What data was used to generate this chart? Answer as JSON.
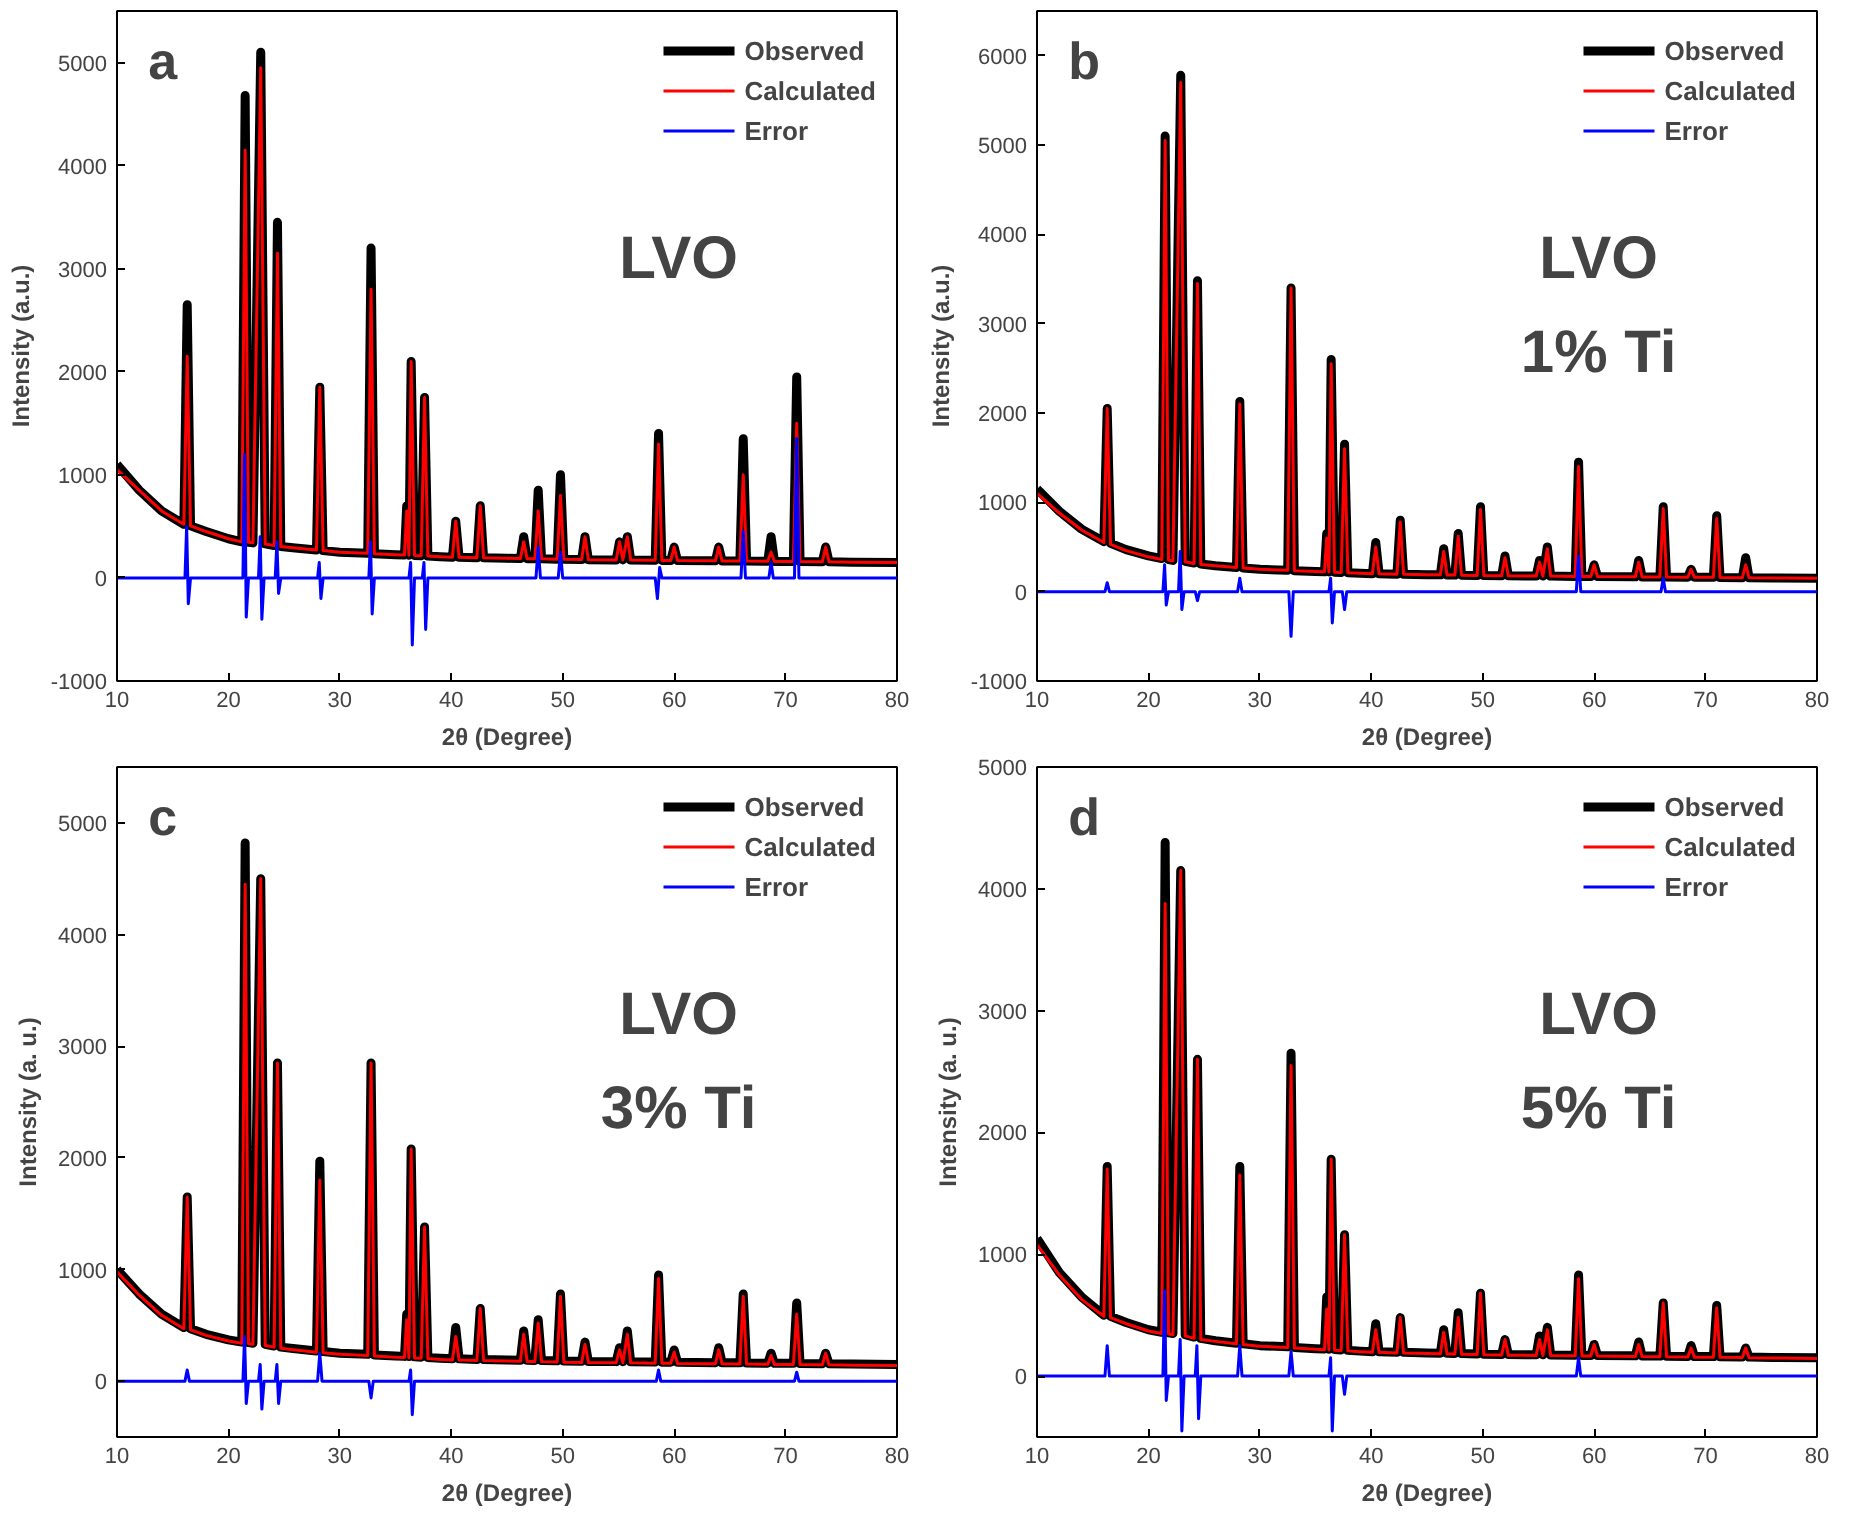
{
  "chart_data": [
    {
      "type": "line",
      "xlabel": "2θ (Degree)",
      "ylabel": "Intensity (a.u.)",
      "annotations": [
        "a",
        "LVO"
      ],
      "legend": "top right",
      "grid": false,
      "xlim": [
        10,
        80
      ],
      "xticks": [
        10,
        20,
        30,
        40,
        50,
        60,
        70,
        80
      ],
      "ylim": [
        -1000,
        5500
      ],
      "yticks": [
        -1000,
        0,
        1000,
        2000,
        3000,
        4000,
        5000
      ],
      "x": [
        10,
        12,
        14,
        16,
        16.3,
        16.6,
        18,
        20,
        21.2,
        21.5,
        21.8,
        22.2,
        22.9,
        23.3,
        24.1,
        24.4,
        24.7,
        26,
        27.9,
        28.2,
        28.5,
        30,
        32.5,
        32.8,
        33.1,
        35,
        35.8,
        36.0,
        36.2,
        36.4,
        36.7,
        37.3,
        37.6,
        37.9,
        39,
        40.1,
        40.4,
        40.7,
        42.3,
        42.6,
        42.9,
        45,
        46.2,
        46.5,
        46.8,
        47.5,
        47.8,
        48.1,
        49.5,
        49.8,
        50.1,
        51.7,
        52.0,
        52.3,
        54.8,
        55.1,
        55.4,
        55.8,
        56.1,
        58.3,
        58.6,
        58.9,
        59.7,
        60.0,
        60.3,
        63.7,
        64.0,
        64.3,
        65.9,
        66.2,
        66.5,
        68.4,
        68.7,
        69.0,
        70.7,
        71.0,
        71.3,
        73.3,
        73.6,
        73.9,
        76,
        80
      ],
      "series": [
        {
          "name": "Observed",
          "color": "#000000",
          "values": [
            1100,
            850,
            650,
            520,
            2650,
            505,
            450,
            380,
            350,
            4680,
            345,
            340,
            5100,
            330,
            315,
            3450,
            305,
            290,
            270,
            1850,
            265,
            250,
            240,
            3200,
            235,
            225,
            222,
            700,
            220,
            2100,
            218,
            215,
            1750,
            212,
            205,
            200,
            550,
            200,
            195,
            700,
            195,
            190,
            188,
            400,
            187,
            186,
            850,
            185,
            182,
            1000,
            180,
            178,
            400,
            177,
            175,
            350,
            175,
            400,
            174,
            171,
            1400,
            170,
            170,
            300,
            169,
            166,
            300,
            165,
            164,
            1350,
            163,
            161,
            400,
            160,
            160,
            1950,
            159,
            157,
            300,
            156,
            153,
            150
          ]
        },
        {
          "name": "Calculated",
          "color": "#ff0000",
          "values": [
            1050,
            850,
            650,
            520,
            2150,
            505,
            450,
            380,
            350,
            4150,
            345,
            340,
            4950,
            330,
            315,
            3150,
            305,
            290,
            270,
            1850,
            265,
            250,
            240,
            2800,
            235,
            225,
            222,
            650,
            220,
            2100,
            218,
            215,
            1750,
            212,
            205,
            200,
            550,
            200,
            195,
            700,
            195,
            190,
            188,
            350,
            187,
            186,
            650,
            185,
            182,
            800,
            180,
            178,
            400,
            177,
            175,
            350,
            175,
            400,
            174,
            171,
            1300,
            170,
            170,
            300,
            169,
            166,
            300,
            165,
            164,
            1000,
            163,
            161,
            250,
            160,
            160,
            1500,
            159,
            157,
            300,
            156,
            153,
            150
          ]
        },
        {
          "name": "Error",
          "color": "#0000ff",
          "x": [
            10,
            16.1,
            16.25,
            16.4,
            16.6,
            21.3,
            21.45,
            21.6,
            21.8,
            22.7,
            22.85,
            23.0,
            23.2,
            24.2,
            24.35,
            24.5,
            24.7,
            28.0,
            28.15,
            28.3,
            28.5,
            32.6,
            32.75,
            32.9,
            33.1,
            36.2,
            36.35,
            36.5,
            36.7,
            37.4,
            37.55,
            37.7,
            37.9,
            47.6,
            47.8,
            48.0,
            49.6,
            49.8,
            50.0,
            58.3,
            58.5,
            58.7,
            58.9,
            66.0,
            66.2,
            66.4,
            68.5,
            68.7,
            68.9,
            70.8,
            71.0,
            71.2,
            80
          ],
          "values": [
            0,
            0,
            500,
            -250,
            0,
            0,
            1200,
            -380,
            0,
            0,
            400,
            -400,
            0,
            0,
            350,
            -150,
            0,
            0,
            150,
            -200,
            0,
            0,
            350,
            -350,
            0,
            0,
            150,
            -650,
            0,
            0,
            150,
            -500,
            0,
            0,
            300,
            0,
            0,
            250,
            0,
            0,
            -200,
            100,
            0,
            0,
            450,
            0,
            0,
            150,
            0,
            0,
            1350,
            0,
            0
          ]
        }
      ]
    },
    {
      "type": "line",
      "xlabel": "2θ (Degree)",
      "ylabel": "Intensity (a.u.)",
      "annotations": [
        "b",
        "LVO",
        "1% Ti"
      ],
      "legend": "top right",
      "grid": false,
      "xlim": [
        10,
        80
      ],
      "xticks": [
        10,
        20,
        30,
        40,
        50,
        60,
        70,
        80
      ],
      "ylim": [
        -1000,
        6500
      ],
      "yticks": [
        -1000,
        0,
        1000,
        2000,
        3000,
        4000,
        5000,
        6000
      ],
      "x": [
        10,
        12,
        14,
        16,
        16.3,
        16.6,
        18,
        20,
        21.2,
        21.5,
        21.8,
        22.2,
        22.9,
        23.3,
        24.1,
        24.4,
        24.7,
        26,
        27.9,
        28.2,
        28.5,
        30,
        32.5,
        32.8,
        33.1,
        35,
        35.8,
        36.0,
        36.2,
        36.4,
        36.7,
        37.3,
        37.6,
        37.9,
        39,
        40.1,
        40.4,
        40.7,
        42.3,
        42.6,
        42.9,
        45,
        46.2,
        46.5,
        46.8,
        47.5,
        47.8,
        48.1,
        49.5,
        49.8,
        50.1,
        51.7,
        52.0,
        52.3,
        54.8,
        55.1,
        55.4,
        55.8,
        56.1,
        58.3,
        58.6,
        58.9,
        59.7,
        60.0,
        60.3,
        63.7,
        64.0,
        64.3,
        65.9,
        66.2,
        66.5,
        68.4,
        68.7,
        69.0,
        70.7,
        71.0,
        71.3,
        73.3,
        73.6,
        73.9,
        76,
        80
      ],
      "series": [
        {
          "name": "Observed",
          "color": "#000000",
          "values": [
            1150,
            900,
            700,
            560,
            2050,
            540,
            470,
            400,
            370,
            5100,
            360,
            350,
            5780,
            340,
            320,
            3480,
            310,
            290,
            270,
            2130,
            265,
            250,
            240,
            3400,
            235,
            225,
            222,
            650,
            220,
            2600,
            218,
            215,
            1650,
            212,
            205,
            200,
            550,
            200,
            195,
            800,
            195,
            190,
            188,
            480,
            187,
            186,
            650,
            185,
            182,
            950,
            180,
            178,
            400,
            177,
            175,
            350,
            175,
            500,
            174,
            171,
            1450,
            170,
            170,
            300,
            169,
            166,
            350,
            165,
            164,
            950,
            163,
            161,
            250,
            160,
            160,
            850,
            159,
            157,
            380,
            156,
            153,
            150
          ]
        },
        {
          "name": "Calculated",
          "color": "#ff0000",
          "values": [
            1100,
            880,
            690,
            550,
            2050,
            530,
            460,
            390,
            360,
            5050,
            355,
            345,
            5700,
            335,
            315,
            3450,
            305,
            290,
            270,
            2100,
            265,
            250,
            240,
            3400,
            235,
            225,
            222,
            600,
            220,
            2550,
            218,
            215,
            1600,
            212,
            205,
            200,
            500,
            200,
            195,
            780,
            195,
            190,
            188,
            450,
            187,
            186,
            620,
            185,
            182,
            920,
            180,
            178,
            380,
            177,
            175,
            330,
            175,
            480,
            174,
            171,
            1400,
            170,
            170,
            300,
            169,
            166,
            330,
            165,
            164,
            930,
            163,
            161,
            250,
            160,
            160,
            820,
            159,
            157,
            300,
            156,
            153,
            150
          ]
        },
        {
          "name": "Error",
          "color": "#0000ff",
          "x": [
            10,
            16.1,
            16.3,
            16.5,
            21.3,
            21.45,
            21.6,
            21.8,
            22.7,
            22.85,
            23.0,
            23.2,
            24.2,
            24.4,
            24.6,
            28.0,
            28.2,
            28.4,
            32.6,
            32.8,
            33.0,
            36.2,
            36.35,
            36.5,
            36.7,
            37.4,
            37.6,
            37.8,
            58.4,
            58.6,
            58.8,
            66.0,
            66.2,
            66.4,
            80
          ],
          "values": [
            0,
            0,
            100,
            0,
            0,
            300,
            -150,
            0,
            0,
            450,
            -200,
            0,
            0,
            -100,
            0,
            0,
            150,
            0,
            0,
            -500,
            0,
            0,
            150,
            -350,
            0,
            0,
            -200,
            0,
            0,
            400,
            0,
            0,
            150,
            0,
            0
          ]
        }
      ]
    },
    {
      "type": "line",
      "xlabel": "2θ (Degree)",
      "ylabel": "Intensity (a. u.)",
      "annotations": [
        "c",
        "LVO",
        "3% Ti"
      ],
      "legend": "top right",
      "grid": false,
      "xlim": [
        10,
        80
      ],
      "xticks": [
        10,
        20,
        30,
        40,
        50,
        60,
        70,
        80
      ],
      "ylim": [
        -500,
        5500
      ],
      "yticks": [
        0,
        1000,
        2000,
        3000,
        4000,
        5000
      ],
      "x": [
        10,
        12,
        14,
        16,
        16.3,
        16.6,
        18,
        20,
        21.2,
        21.5,
        21.8,
        22.2,
        22.9,
        23.3,
        24.1,
        24.4,
        24.7,
        26,
        27.9,
        28.2,
        28.5,
        30,
        32.5,
        32.8,
        33.1,
        35,
        35.8,
        36.0,
        36.2,
        36.4,
        36.7,
        37.3,
        37.6,
        37.9,
        39,
        40.1,
        40.4,
        40.7,
        42.3,
        42.6,
        42.9,
        45,
        46.2,
        46.5,
        46.8,
        47.5,
        47.8,
        48.1,
        49.5,
        49.8,
        50.1,
        51.7,
        52.0,
        52.3,
        54.8,
        55.1,
        55.4,
        55.8,
        56.1,
        58.3,
        58.6,
        58.9,
        59.7,
        60.0,
        60.3,
        63.7,
        64.0,
        64.3,
        65.9,
        66.2,
        66.5,
        68.4,
        68.7,
        69.0,
        70.7,
        71.0,
        71.3,
        73.3,
        73.6,
        73.9,
        76,
        80
      ],
      "series": [
        {
          "name": "Observed",
          "color": "#000000",
          "values": [
            1000,
            780,
            600,
            480,
            1650,
            470,
            420,
            370,
            350,
            4820,
            345,
            340,
            4500,
            330,
            315,
            2850,
            305,
            290,
            270,
            1970,
            265,
            250,
            240,
            2850,
            235,
            225,
            222,
            600,
            220,
            2080,
            218,
            215,
            1380,
            212,
            205,
            200,
            480,
            200,
            195,
            650,
            195,
            190,
            188,
            450,
            187,
            186,
            550,
            185,
            182,
            780,
            180,
            178,
            350,
            177,
            175,
            300,
            175,
            450,
            174,
            171,
            950,
            170,
            170,
            280,
            169,
            166,
            300,
            165,
            164,
            780,
            163,
            161,
            250,
            160,
            160,
            700,
            159,
            157,
            250,
            156,
            153,
            150
          ]
        },
        {
          "name": "Calculated",
          "color": "#ff0000",
          "values": [
            980,
            770,
            590,
            470,
            1650,
            460,
            410,
            360,
            340,
            4450,
            335,
            330,
            4500,
            320,
            305,
            2850,
            295,
            280,
            260,
            1800,
            255,
            240,
            230,
            2850,
            225,
            215,
            212,
            550,
            210,
            2080,
            208,
            205,
            1380,
            202,
            195,
            190,
            400,
            190,
            185,
            650,
            185,
            180,
            178,
            420,
            177,
            176,
            520,
            175,
            172,
            760,
            170,
            168,
            330,
            167,
            165,
            280,
            165,
            420,
            164,
            161,
            920,
            160,
            160,
            260,
            159,
            156,
            280,
            155,
            154,
            760,
            153,
            151,
            230,
            150,
            150,
            600,
            149,
            147,
            250,
            146,
            143,
            140
          ]
        },
        {
          "name": "Error",
          "color": "#0000ff",
          "x": [
            10,
            16.1,
            16.3,
            16.5,
            21.3,
            21.45,
            21.6,
            21.8,
            22.7,
            22.85,
            23.0,
            23.2,
            24.2,
            24.35,
            24.5,
            24.7,
            28.0,
            28.2,
            28.4,
            32.6,
            32.8,
            33.0,
            36.2,
            36.35,
            36.5,
            36.7,
            58.4,
            58.6,
            58.8,
            70.8,
            71.0,
            71.2,
            80
          ],
          "values": [
            0,
            0,
            100,
            0,
            0,
            400,
            -200,
            0,
            0,
            150,
            -250,
            0,
            0,
            150,
            -200,
            0,
            0,
            250,
            0,
            0,
            -150,
            0,
            0,
            100,
            -300,
            0,
            0,
            100,
            0,
            0,
            80,
            0,
            0
          ]
        }
      ]
    },
    {
      "type": "line",
      "xlabel": "2θ (Degree)",
      "ylabel": "Intensity (a. u.)",
      "annotations": [
        "d",
        "LVO",
        "5% Ti"
      ],
      "legend": "top right",
      "grid": false,
      "xlim": [
        10,
        80
      ],
      "xticks": [
        10,
        20,
        30,
        40,
        50,
        60,
        70,
        80
      ],
      "ylim": [
        -500,
        5000
      ],
      "yticks": [
        0,
        1000,
        2000,
        3000,
        4000,
        5000
      ],
      "x": [
        10,
        12,
        14,
        16,
        16.3,
        16.6,
        18,
        20,
        21.2,
        21.5,
        21.8,
        22.2,
        22.9,
        23.3,
        24.1,
        24.4,
        24.7,
        26,
        27.9,
        28.2,
        28.5,
        30,
        32.5,
        32.8,
        33.1,
        35,
        35.8,
        36.0,
        36.2,
        36.4,
        36.7,
        37.3,
        37.6,
        37.9,
        39,
        40.1,
        40.4,
        40.7,
        42.3,
        42.6,
        42.9,
        45,
        46.2,
        46.5,
        46.8,
        47.5,
        47.8,
        48.1,
        49.5,
        49.8,
        50.1,
        51.7,
        52.0,
        52.3,
        54.8,
        55.1,
        55.4,
        55.8,
        56.1,
        58.3,
        58.6,
        58.9,
        59.7,
        60.0,
        60.3,
        63.7,
        64.0,
        64.3,
        65.9,
        66.2,
        66.5,
        68.4,
        68.7,
        69.0,
        70.7,
        71.0,
        71.3,
        73.3,
        73.6,
        73.9,
        76,
        80
      ],
      "series": [
        {
          "name": "Observed",
          "color": "#000000",
          "values": [
            1130,
            850,
            650,
            500,
            1720,
            490,
            440,
            380,
            360,
            4380,
            355,
            350,
            4150,
            340,
            320,
            2600,
            310,
            290,
            270,
            1720,
            265,
            250,
            240,
            2650,
            235,
            225,
            222,
            650,
            220,
            1780,
            218,
            215,
            1160,
            212,
            205,
            200,
            430,
            200,
            195,
            480,
            195,
            190,
            188,
            380,
            187,
            186,
            520,
            185,
            182,
            680,
            180,
            178,
            300,
            177,
            175,
            330,
            175,
            400,
            174,
            171,
            830,
            170,
            170,
            260,
            169,
            166,
            280,
            165,
            164,
            600,
            163,
            161,
            250,
            160,
            160,
            580,
            159,
            157,
            230,
            156,
            153,
            150
          ]
        },
        {
          "name": "Calculated",
          "color": "#ff0000",
          "values": [
            1080,
            830,
            630,
            490,
            1700,
            480,
            430,
            370,
            350,
            3880,
            345,
            340,
            4150,
            330,
            310,
            2600,
            300,
            285,
            265,
            1650,
            260,
            245,
            235,
            2550,
            230,
            220,
            217,
            550,
            215,
            1780,
            213,
            210,
            1160,
            207,
            200,
            195,
            380,
            195,
            190,
            480,
            190,
            185,
            183,
            360,
            182,
            181,
            480,
            180,
            177,
            680,
            175,
            173,
            300,
            172,
            170,
            300,
            170,
            380,
            169,
            166,
            800,
            165,
            165,
            260,
            164,
            161,
            260,
            160,
            159,
            600,
            158,
            156,
            230,
            155,
            155,
            560,
            154,
            152,
            230,
            151,
            148,
            145
          ]
        },
        {
          "name": "Error",
          "color": "#0000ff",
          "x": [
            10,
            16.1,
            16.3,
            16.5,
            21.3,
            21.45,
            21.6,
            21.8,
            22.7,
            22.85,
            23.0,
            23.2,
            24.2,
            24.35,
            24.5,
            24.7,
            28.0,
            28.2,
            28.4,
            32.6,
            32.8,
            33.0,
            36.2,
            36.35,
            36.5,
            36.7,
            37.4,
            37.6,
            37.8,
            58.4,
            58.6,
            58.8,
            80
          ],
          "values": [
            0,
            0,
            250,
            0,
            0,
            700,
            -200,
            0,
            0,
            300,
            -450,
            0,
            0,
            250,
            -350,
            0,
            0,
            250,
            0,
            0,
            200,
            0,
            0,
            150,
            -450,
            0,
            0,
            -150,
            0,
            0,
            150,
            0,
            0
          ]
        }
      ]
    }
  ]
}
